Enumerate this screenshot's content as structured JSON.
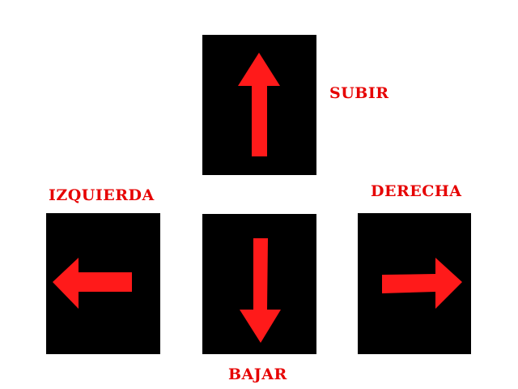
{
  "colors": {
    "key_background": "#000000",
    "arrow": "#ff1a1a",
    "label": "#e60000",
    "page_background": "#ffffff"
  },
  "controls": {
    "up": {
      "label": "SUBIR",
      "icon": "arrow-up-icon"
    },
    "left": {
      "label": "IZQUIERDA",
      "icon": "arrow-left-icon"
    },
    "right": {
      "label": "DERECHA",
      "icon": "arrow-right-icon"
    },
    "down": {
      "label": "BAJAR",
      "icon": "arrow-down-icon"
    }
  }
}
